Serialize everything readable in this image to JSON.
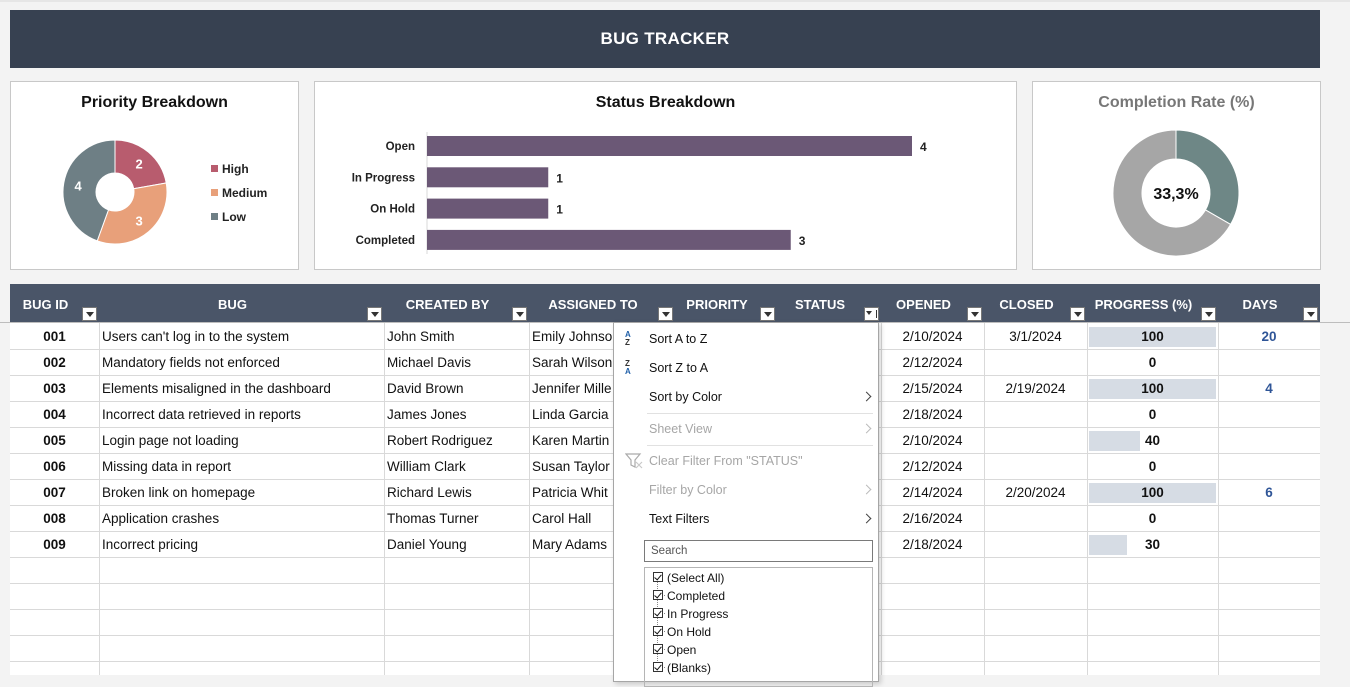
{
  "title": "BUG TRACKER",
  "priority_panel": {
    "title": "Priority Breakdown",
    "legend": [
      {
        "label": "High",
        "color": "#b85c6e"
      },
      {
        "label": "Medium",
        "color": "#e8a07a"
      },
      {
        "label": "Low",
        "color": "#6e7f85"
      }
    ]
  },
  "status_panel": {
    "title": "Status Breakdown"
  },
  "completion_panel": {
    "title": "Completion Rate (%)",
    "value_label": "33,3%"
  },
  "chart_data": [
    {
      "type": "pie",
      "title": "Priority Breakdown",
      "categories": [
        "High",
        "Medium",
        "Low"
      ],
      "values": [
        2,
        3,
        4
      ],
      "colors": [
        "#b85c6e",
        "#e8a07a",
        "#6e7f85"
      ],
      "legend": "right"
    },
    {
      "type": "bar",
      "orientation": "horizontal",
      "title": "Status Breakdown",
      "categories": [
        "Open",
        "In Progress",
        "On Hold",
        "Completed"
      ],
      "values": [
        4,
        1,
        1,
        3
      ],
      "color": "#6b5876",
      "xlim": [
        0,
        4
      ]
    },
    {
      "type": "pie",
      "title": "Completion Rate (%)",
      "values": [
        33.3,
        66.7
      ],
      "colors": [
        "#6e8786",
        "#a6a6a6"
      ],
      "center_label": "33,3%"
    }
  ],
  "table": {
    "columns": [
      "BUG ID",
      "BUG",
      "CREATED BY",
      "ASSIGNED TO",
      "PRIORITY",
      "STATUS",
      "OPENED",
      "CLOSED",
      "PROGRESS (%)",
      "DAYS"
    ],
    "rows": [
      {
        "id": "001",
        "bug": "Users can't log in to the system",
        "created": "John Smith",
        "assigned": "Emily Johnso",
        "opened": "2/10/2024",
        "closed": "3/1/2024",
        "progress": 100,
        "days": "20"
      },
      {
        "id": "002",
        "bug": "Mandatory fields not enforced",
        "created": "Michael Davis",
        "assigned": "Sarah Wilson",
        "opened": "2/12/2024",
        "closed": "",
        "progress": 0,
        "days": ""
      },
      {
        "id": "003",
        "bug": "Elements misaligned in the dashboard",
        "created": "David Brown",
        "assigned": "Jennifer Mille",
        "opened": "2/15/2024",
        "closed": "2/19/2024",
        "progress": 100,
        "days": "4"
      },
      {
        "id": "004",
        "bug": "Incorrect data retrieved in reports",
        "created": "James Jones",
        "assigned": "Linda Garcia",
        "opened": "2/18/2024",
        "closed": "",
        "progress": 0,
        "days": ""
      },
      {
        "id": "005",
        "bug": "Login page not loading",
        "created": "Robert Rodriguez",
        "assigned": "Karen Martin",
        "opened": "2/10/2024",
        "closed": "",
        "progress": 40,
        "days": ""
      },
      {
        "id": "006",
        "bug": "Missing data in report",
        "created": "William Clark",
        "assigned": "Susan Taylor",
        "opened": "2/12/2024",
        "closed": "",
        "progress": 0,
        "days": ""
      },
      {
        "id": "007",
        "bug": "Broken link on homepage",
        "created": "Richard Lewis",
        "assigned": "Patricia Whit",
        "opened": "2/14/2024",
        "closed": "2/20/2024",
        "progress": 100,
        "days": "6"
      },
      {
        "id": "008",
        "bug": "Application crashes",
        "created": "Thomas Turner",
        "assigned": "Carol Hall",
        "opened": "2/16/2024",
        "closed": "",
        "progress": 0,
        "days": ""
      },
      {
        "id": "009",
        "bug": "Incorrect pricing",
        "created": "Daniel Young",
        "assigned": "Mary Adams",
        "opened": "2/18/2024",
        "closed": "",
        "progress": 30,
        "days": ""
      }
    ]
  },
  "filter_menu": {
    "sort_az": "Sort A to Z",
    "sort_za": "Sort Z to A",
    "sort_by_color": "Sort by Color",
    "sheet_view": "Sheet View",
    "clear_filter": "Clear Filter From \"STATUS\"",
    "filter_by_color": "Filter by Color",
    "text_filters": "Text Filters",
    "search_placeholder": "Search",
    "options": [
      "(Select All)",
      "Completed",
      "In Progress",
      "On Hold",
      "Open",
      "(Blanks)"
    ]
  }
}
